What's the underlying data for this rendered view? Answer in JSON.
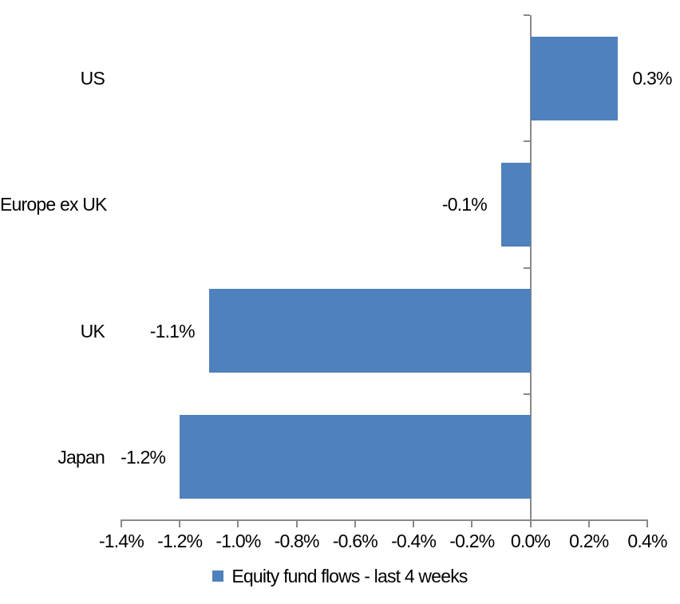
{
  "chart_data": {
    "type": "bar",
    "orientation": "horizontal",
    "title": "",
    "xlabel": "",
    "ylabel": "",
    "categories": [
      "US",
      "Europe ex UK",
      "UK",
      "Japan"
    ],
    "series": [
      {
        "name": "Equity fund flows - last 4 weeks",
        "values": [
          0.3,
          -0.1,
          -1.1,
          -1.2
        ],
        "value_labels": [
          "0.3%",
          "-0.1%",
          "-1.1%",
          "-1.2%"
        ]
      }
    ],
    "xlim": [
      -1.4,
      0.4
    ],
    "x_tick_values": [
      -1.4,
      -1.2,
      -1.0,
      -0.8,
      -0.6,
      -0.4,
      -0.2,
      0.0,
      0.2,
      0.4
    ],
    "x_tick_labels": [
      "-1.4%",
      "-1.2%",
      "-1.0%",
      "-0.8%",
      "-0.6%",
      "-0.4%",
      "-0.2%",
      "0.0%",
      "0.2%",
      "0.4%"
    ],
    "grid": false,
    "legend_position": "bottom",
    "colors": {
      "bar": "#4F81BD",
      "axis": "#898989",
      "text": "#000000",
      "background": "#ffffff"
    }
  },
  "legend": {
    "items": [
      {
        "label": "Equity fund flows - last 4 weeks",
        "color": "#4F81BD"
      }
    ]
  }
}
